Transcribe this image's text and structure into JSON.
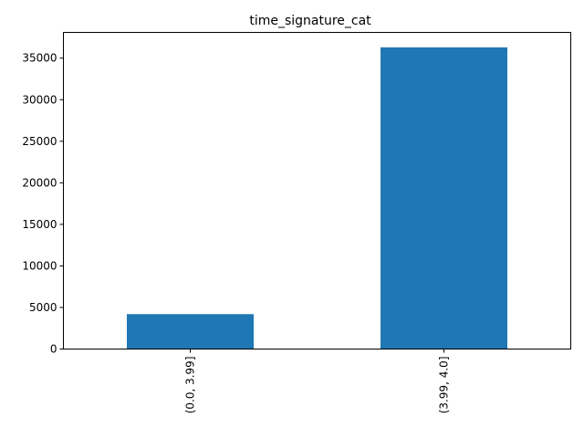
{
  "chart_data": {
    "type": "bar",
    "title": "time_signature_cat",
    "xlabel": "",
    "ylabel": "",
    "categories": [
      "(0.0, 3.99]",
      "(3.99, 4.0]"
    ],
    "values": [
      4200,
      36300
    ],
    "ylim": [
      0,
      38100
    ],
    "yticks": [
      0,
      5000,
      10000,
      15000,
      20000,
      25000,
      30000,
      35000
    ],
    "ytick_labels": [
      "0",
      "5000",
      "10000",
      "15000",
      "20000",
      "25000",
      "30000",
      "35000"
    ],
    "grid": false,
    "legend": "none",
    "bar_color": "#1f77b4"
  }
}
